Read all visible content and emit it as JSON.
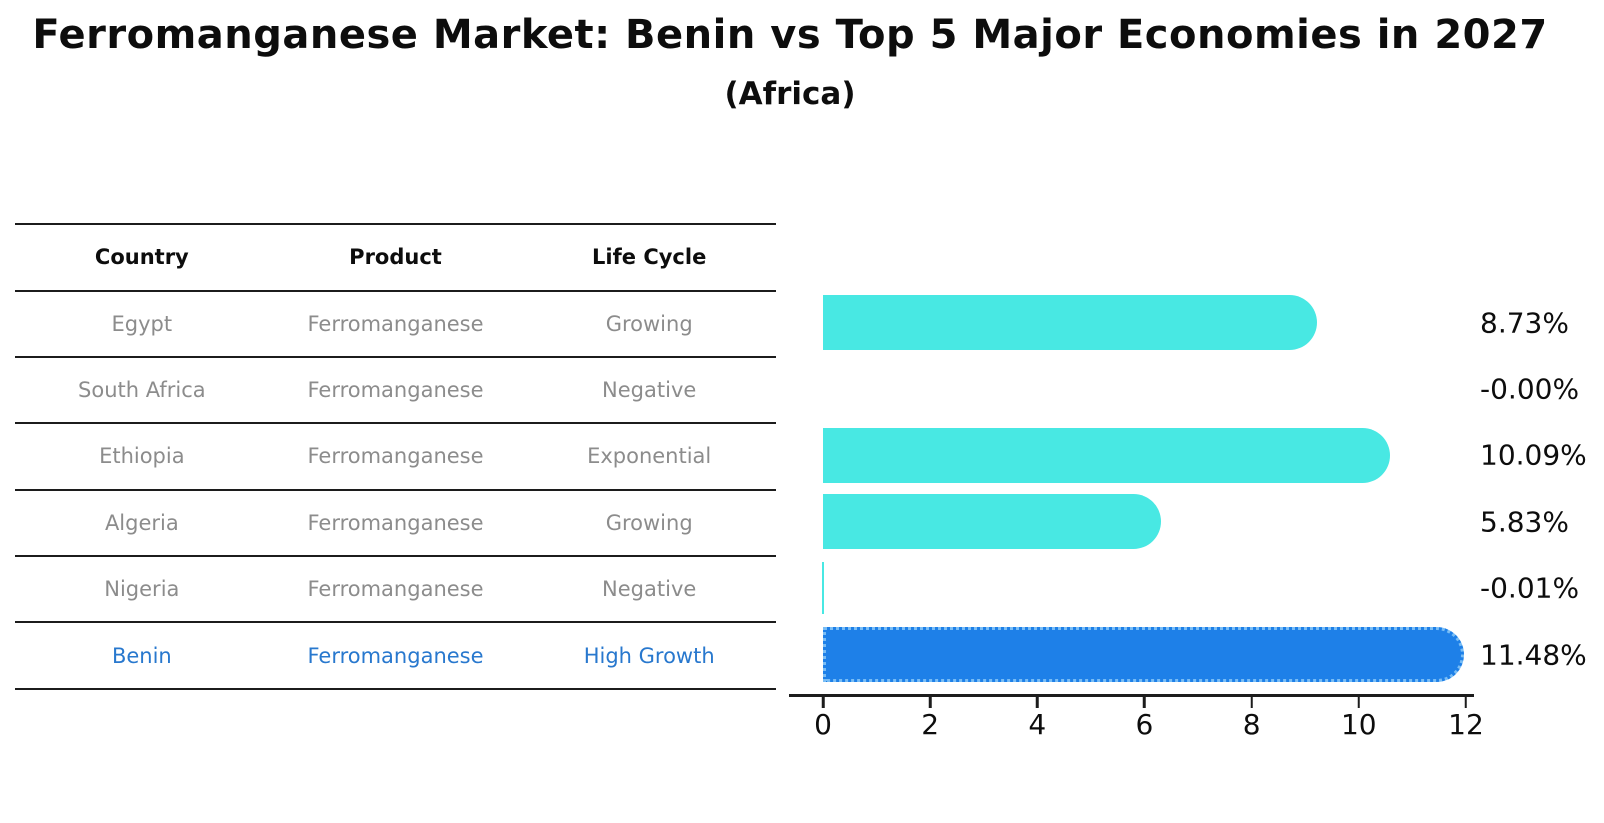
{
  "title": "Ferromanganese Market: Benin vs Top 5 Major Economies in 2027",
  "subtitle": "(Africa)",
  "table": {
    "headers": [
      "Country",
      "Product",
      "Life Cycle"
    ],
    "rows": [
      {
        "country": "Egypt",
        "product": "Ferromanganese",
        "life_cycle": "Growing"
      },
      {
        "country": "South Africa",
        "product": "Ferromanganese",
        "life_cycle": "Negative"
      },
      {
        "country": "Ethiopia",
        "product": "Ferromanganese",
        "life_cycle": "Exponential"
      },
      {
        "country": "Algeria",
        "product": "Ferromanganese",
        "life_cycle": "Growing"
      },
      {
        "country": "Nigeria",
        "product": "Ferromanganese",
        "life_cycle": "Negative"
      },
      {
        "country": "Benin",
        "product": "Ferromanganese",
        "life_cycle": "High Growth"
      }
    ],
    "highlight_row_index": 5
  },
  "chart_data": {
    "type": "bar",
    "orientation": "horizontal",
    "categories": [
      "Egypt",
      "South Africa",
      "Ethiopia",
      "Algeria",
      "Nigeria",
      "Benin"
    ],
    "values": [
      8.73,
      -0.0,
      10.09,
      5.83,
      -0.01,
      11.48
    ],
    "value_labels": [
      "8.73%",
      "-0.00%",
      "10.09%",
      "5.83%",
      "-0.01%",
      "11.48%"
    ],
    "xlim": [
      0,
      12
    ],
    "xticks": [
      0,
      2,
      4,
      6,
      8,
      10,
      12
    ],
    "grid": false,
    "legend": "none",
    "highlight_index": 5,
    "colors": {
      "bar": "#48e8e3",
      "highlight_bar": "#1e80e8",
      "highlight_edge": "#79bdf5",
      "highlight_text": "#2878ce",
      "row_text": "#8c8c8c",
      "header_text": "#0d0d0d",
      "axis": "#1c1c1c"
    }
  }
}
